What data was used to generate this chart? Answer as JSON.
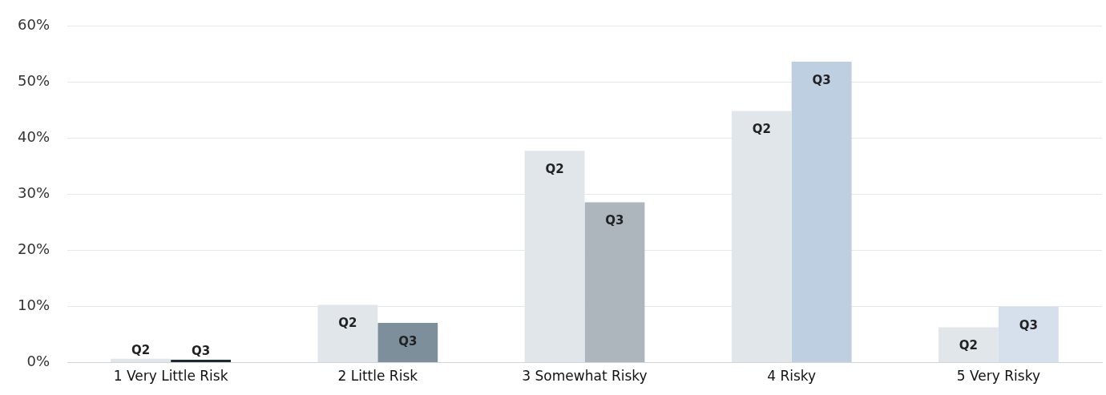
{
  "chart_data": {
    "type": "bar",
    "categories": [
      "1 Very Little Risk",
      "2 Little Risk",
      "3 Somewhat Risky",
      "4 Risky",
      "5 Very Risky"
    ],
    "series": [
      {
        "name": "Q2",
        "color": "#e1e6ea",
        "values": [
          0.7,
          10.3,
          37.8,
          44.9,
          6.3
        ]
      },
      {
        "name": "Q3",
        "colors": [
          "#1c2a38",
          "#7d8f9b",
          "#adb5bd",
          "#bfcfe2",
          "#d6e0ec"
        ],
        "values": [
          0.5,
          7.1,
          28.6,
          53.7,
          10.0
        ]
      }
    ],
    "ylim": [
      0,
      60
    ],
    "yticks": [
      {
        "value": 0,
        "label": "0%"
      },
      {
        "value": 10,
        "label": "10%"
      },
      {
        "value": 20,
        "label": "20%"
      },
      {
        "value": 30,
        "label": "30%"
      },
      {
        "value": 40,
        "label": "40%"
      },
      {
        "value": 50,
        "label": "50%"
      },
      {
        "value": 60,
        "label": "60%"
      }
    ],
    "grid": "y",
    "legend": false
  }
}
